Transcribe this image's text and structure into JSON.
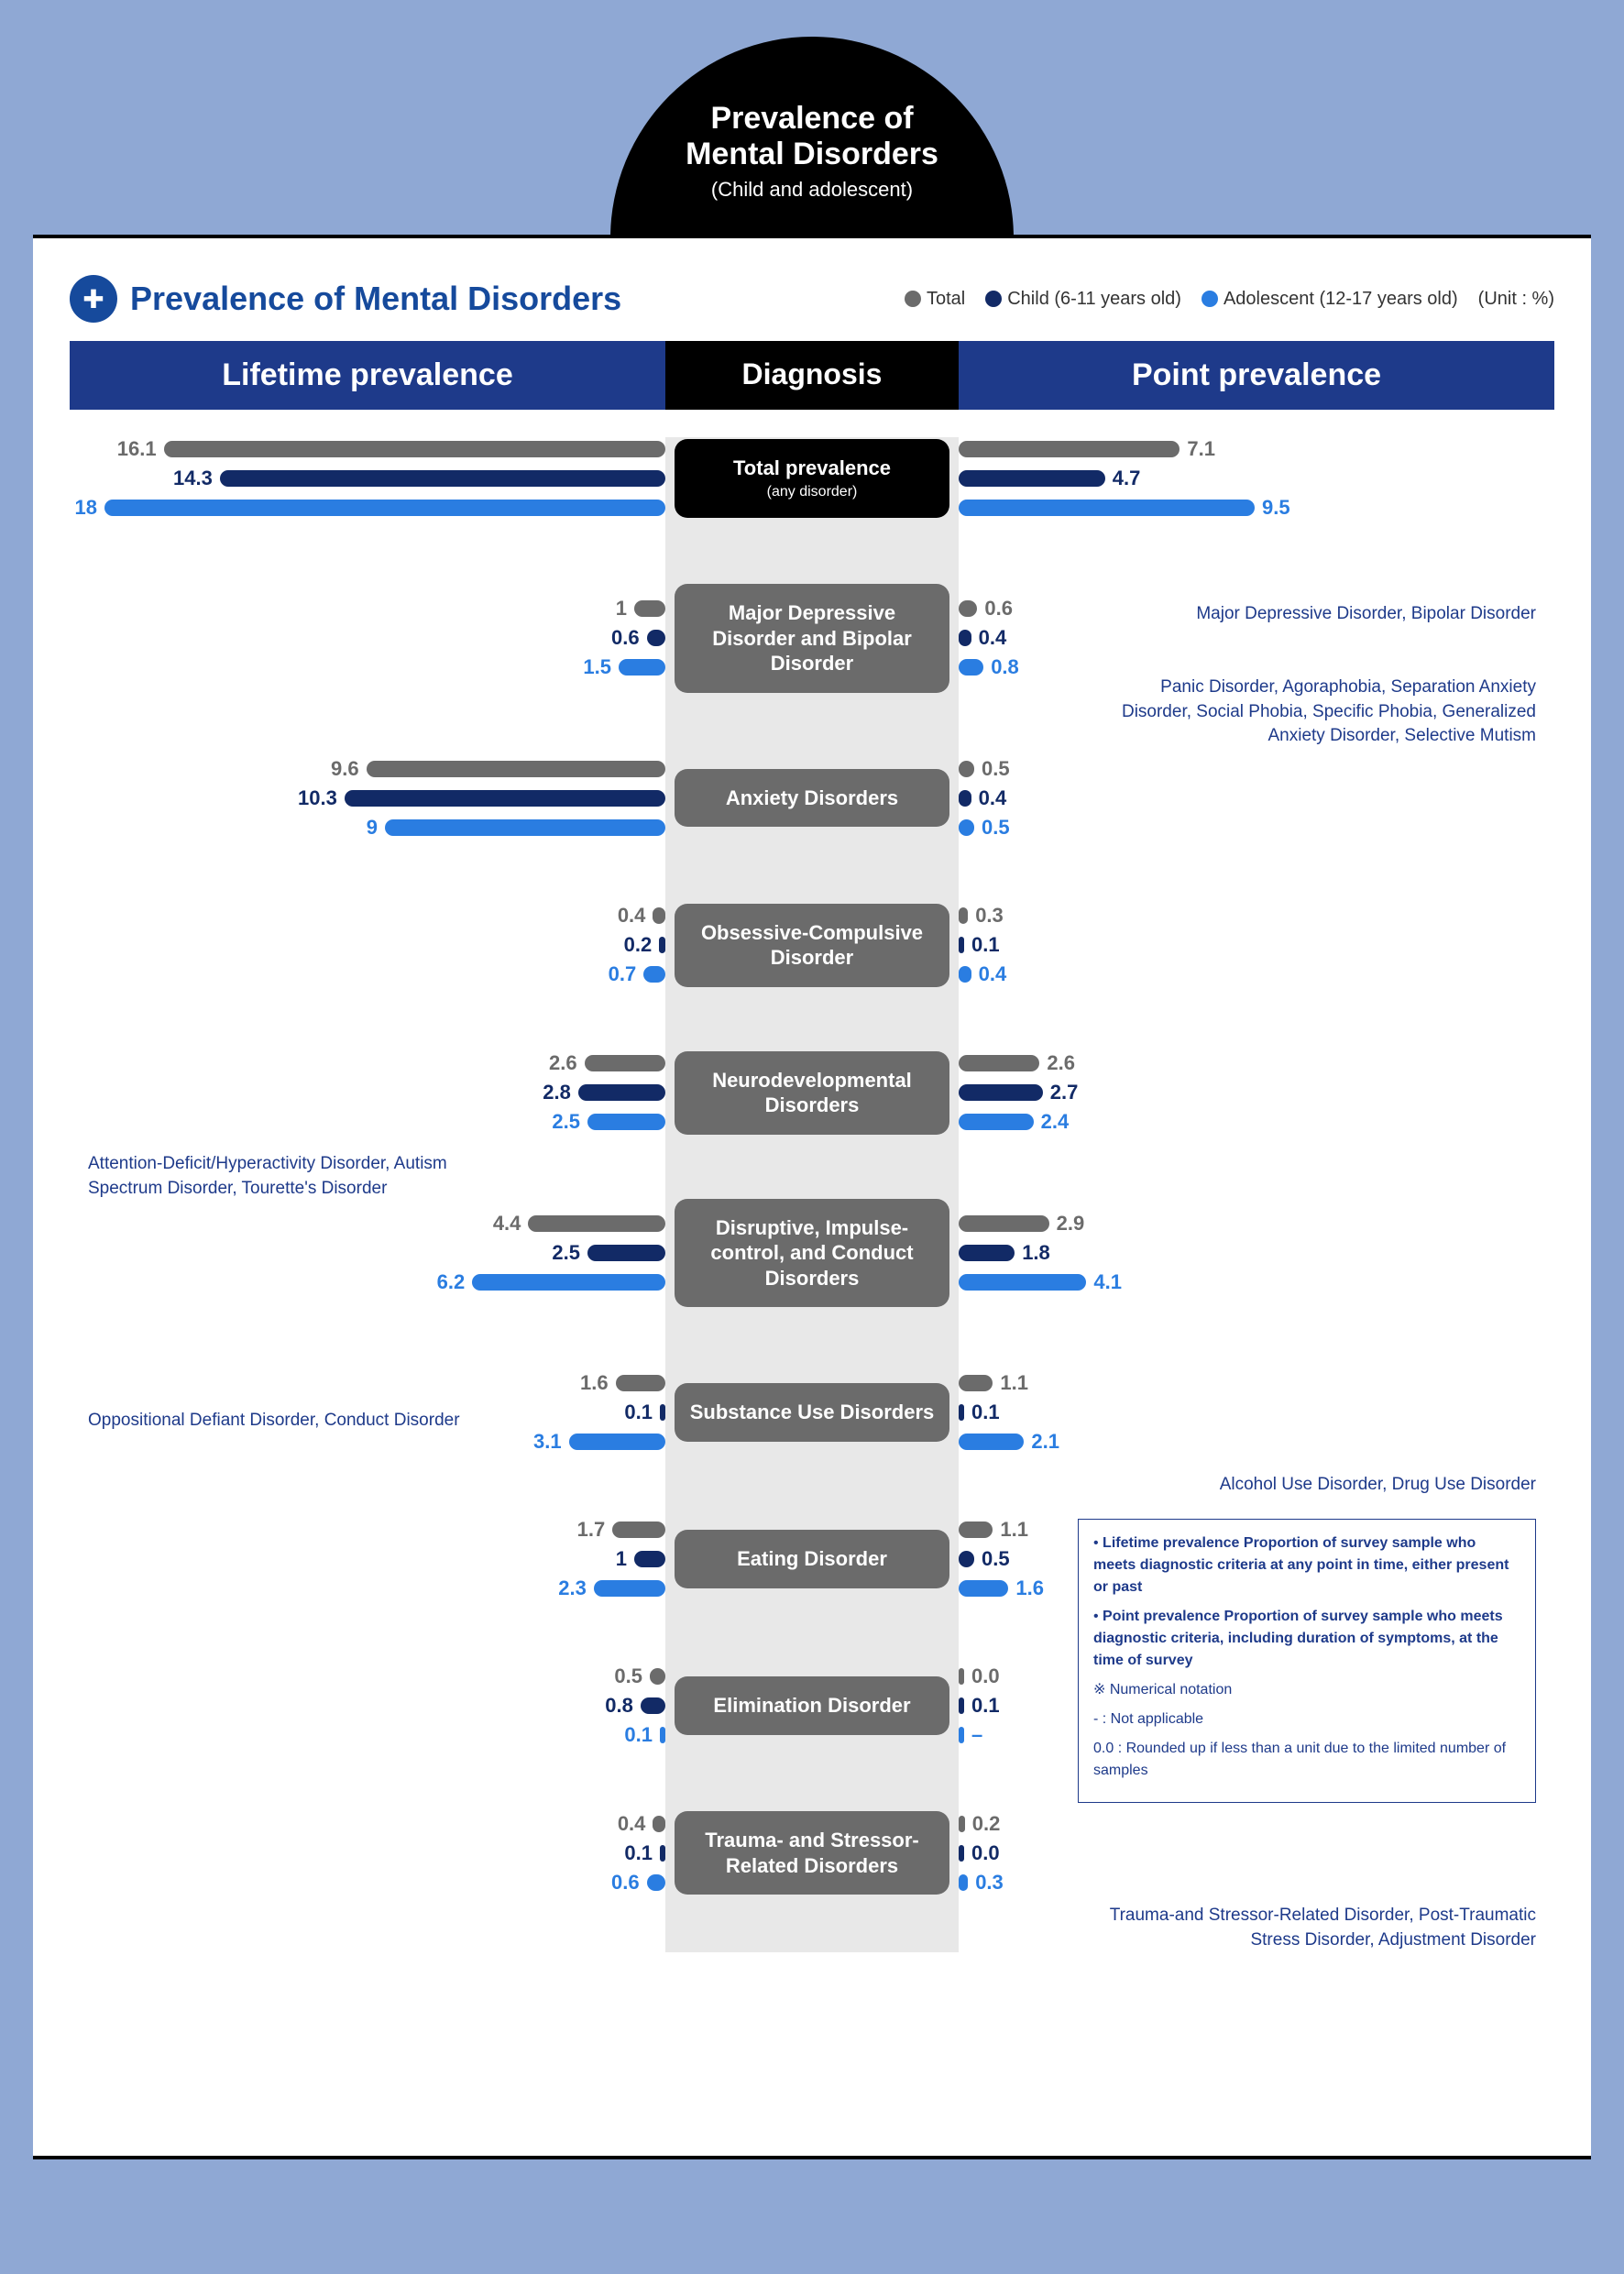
{
  "header": {
    "line1": "Prevalence of",
    "line2": "Mental Disorders",
    "line3": "(Child and adolescent)"
  },
  "subtitle": "Prevalence of Mental Disorders",
  "legend": {
    "total": {
      "label": "Total",
      "color": "#6b6b6b"
    },
    "child": {
      "label": "Child (6-11 years old)",
      "color": "#122a66"
    },
    "adolescent": {
      "label": "Adolescent (12-17 years old)",
      "color": "#2a7de1"
    },
    "unit": "(Unit : %)"
  },
  "columns": {
    "left": "Lifetime prevalence",
    "mid": "Diagnosis",
    "right": "Point prevalence"
  },
  "scale": {
    "maxValue": 18.0,
    "pxPerUnit": 34
  },
  "rows": [
    {
      "label": "Total prevalence",
      "sublabel": "(any disorder)",
      "labelBg": "#000000",
      "lifetime": {
        "total": 16.1,
        "child": 14.3,
        "adolescent": 18.0
      },
      "point": {
        "total": 7.1,
        "child": 4.7,
        "adolescent": 9.5
      }
    },
    {
      "label": "Major Depressive Disorder and Bipolar Disorder",
      "labelBg": "#6b6b6b",
      "lifetime": {
        "total": 1.0,
        "child": 0.6,
        "adolescent": 1.5
      },
      "point": {
        "total": 0.6,
        "child": 0.4,
        "adolescent": 0.8
      }
    },
    {
      "label": "Anxiety Disorders",
      "labelBg": "#6b6b6b",
      "lifetime": {
        "total": 9.6,
        "child": 10.3,
        "adolescent": 9.0
      },
      "point": {
        "total": 0.5,
        "child": 0.4,
        "adolescent": 0.5
      }
    },
    {
      "label": "Obsessive-Compulsive Disorder",
      "labelBg": "#6b6b6b",
      "lifetime": {
        "total": 0.4,
        "child": 0.2,
        "adolescent": 0.7
      },
      "point": {
        "total": 0.3,
        "child": 0.1,
        "adolescent": 0.4
      }
    },
    {
      "label": "Neurodevelopmental Disorders",
      "labelBg": "#6b6b6b",
      "lifetime": {
        "total": 2.6,
        "child": 2.8,
        "adolescent": 2.5
      },
      "point": {
        "total": 2.6,
        "child": 2.7,
        "adolescent": 2.4
      }
    },
    {
      "label": "Disruptive, Impulse-control, and Conduct Disorders",
      "labelBg": "#6b6b6b",
      "lifetime": {
        "total": 4.4,
        "child": 2.5,
        "adolescent": 6.2
      },
      "point": {
        "total": 2.9,
        "child": 1.8,
        "adolescent": 4.1
      }
    },
    {
      "label": "Substance Use Disorders",
      "labelBg": "#6b6b6b",
      "lifetime": {
        "total": 1.6,
        "child": 0.1,
        "adolescent": 3.1
      },
      "point": {
        "total": 1.1,
        "child": 0.1,
        "adolescent": 2.1
      }
    },
    {
      "label": "Eating Disorder",
      "labelBg": "#6b6b6b",
      "lifetime": {
        "total": 1.7,
        "child": 1.0,
        "adolescent": 2.3
      },
      "point": {
        "total": 1.1,
        "child": 0.5,
        "adolescent": 1.6
      }
    },
    {
      "label": "Elimination Disorder",
      "labelBg": "#6b6b6b",
      "lifetime": {
        "total": 0.5,
        "child": 0.8,
        "adolescent": 0.1
      },
      "point": {
        "total": "0.0",
        "child": 0.1,
        "adolescent": "–"
      }
    },
    {
      "label": "Trauma- and Stressor-Related Disorders",
      "labelBg": "#6b6b6b",
      "lifetime": {
        "total": 0.4,
        "child": 0.1,
        "adolescent": 0.6
      },
      "point": {
        "total": 0.2,
        "child": "0.0",
        "adolescent": 0.3
      }
    }
  ],
  "annotations": {
    "mdd": "Major Depressive Disorder, Bipolar Disorder",
    "anxiety": "Panic Disorder, Agoraphobia, Separation Anxiety Disorder, Social Phobia, Specific Phobia, Generalized Anxiety Disorder, Selective Mutism",
    "neuro": "Attention-Deficit/Hyperactivity Disorder, Autism Spectrum Disorder, Tourette's Disorder",
    "disruptive": "Oppositional Defiant Disorder, Conduct Disorder",
    "substance": "Alcohol Use Disorder, Drug Use Disorder",
    "trauma": "Trauma-and Stressor-Related Disorder, Post-Traumatic Stress Disorder, Adjustment Disorder"
  },
  "definitions": {
    "lifetime": "Lifetime prevalence Proportion of survey sample who meets diagnostic criteria at any point in time, either present or past",
    "point": "Point prevalence Proportion of survey sample who meets diagnostic criteria, including duration of symptoms, at the time of survey",
    "notation_header": "※ Numerical notation",
    "na": "-  : Not applicable",
    "rounded": "0.0 :  Rounded up if less than a unit due to the limited number of samples"
  }
}
